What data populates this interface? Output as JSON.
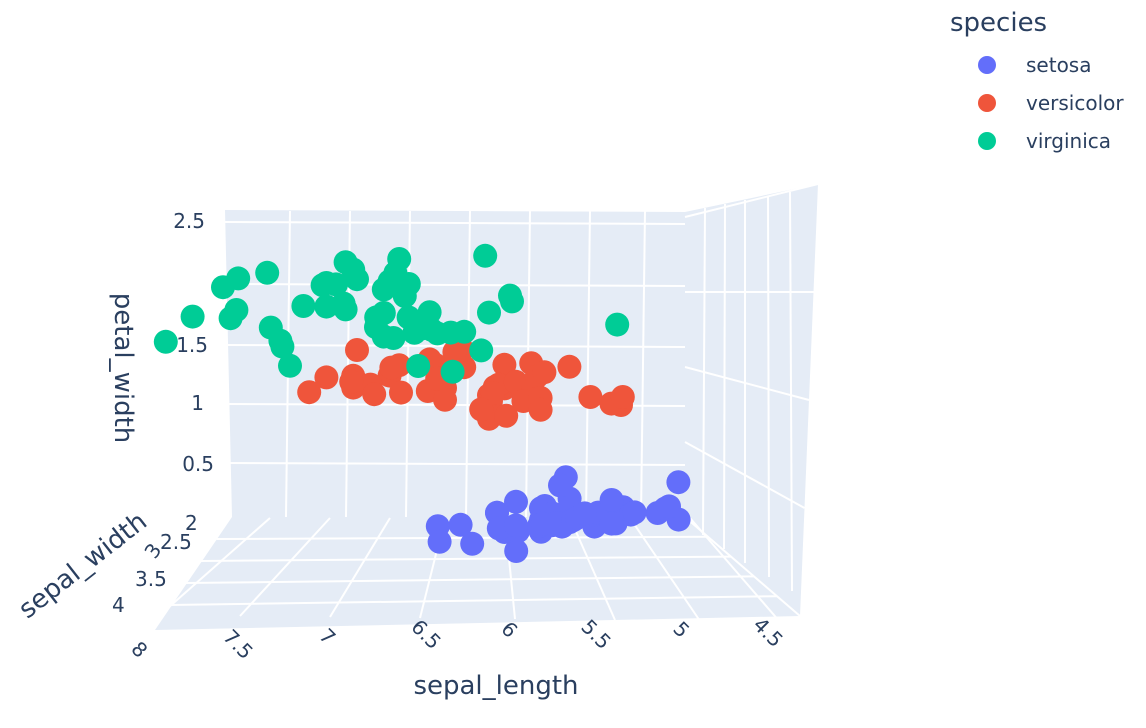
{
  "chart_data": {
    "type": "scatter",
    "projection": "3d",
    "legend_title": "species",
    "legend_position": "top-right",
    "axes": {
      "x": {
        "title": "sepal_length",
        "ticks": [
          "4.5",
          "5",
          "5.5",
          "6",
          "6.5",
          "7",
          "7.5",
          "8"
        ],
        "range": [
          4.3,
          8
        ]
      },
      "y": {
        "title": "sepal_width",
        "ticks": [
          "2",
          "2.5",
          "3",
          "3.5",
          "4"
        ],
        "range": [
          2,
          4.4
        ]
      },
      "z": {
        "title": "petal_width",
        "ticks": [
          "0.5",
          "1",
          "1.5",
          "2.5"
        ],
        "range": [
          0.1,
          2.5
        ]
      }
    },
    "grid": true,
    "series": [
      {
        "name": "setosa",
        "color": "#636efa",
        "points": [
          [
            5.1,
            3.5,
            0.2
          ],
          [
            4.9,
            3.0,
            0.2
          ],
          [
            4.7,
            3.2,
            0.2
          ],
          [
            4.6,
            3.1,
            0.2
          ],
          [
            5.0,
            3.6,
            0.2
          ],
          [
            5.4,
            3.9,
            0.4
          ],
          [
            4.6,
            3.4,
            0.3
          ],
          [
            5.0,
            3.4,
            0.2
          ],
          [
            4.4,
            2.9,
            0.2
          ],
          [
            4.9,
            3.1,
            0.1
          ],
          [
            5.4,
            3.7,
            0.2
          ],
          [
            4.8,
            3.4,
            0.2
          ],
          [
            4.8,
            3.0,
            0.1
          ],
          [
            4.3,
            3.0,
            0.1
          ],
          [
            5.8,
            4.0,
            0.2
          ],
          [
            5.7,
            4.4,
            0.4
          ],
          [
            5.4,
            3.9,
            0.4
          ],
          [
            5.1,
            3.5,
            0.3
          ],
          [
            5.7,
            3.8,
            0.3
          ],
          [
            5.1,
            3.8,
            0.3
          ],
          [
            5.4,
            3.4,
            0.2
          ],
          [
            5.1,
            3.7,
            0.4
          ],
          [
            4.6,
            3.6,
            0.2
          ],
          [
            5.1,
            3.3,
            0.5
          ],
          [
            4.8,
            3.4,
            0.2
          ],
          [
            5.0,
            3.0,
            0.2
          ],
          [
            5.0,
            3.4,
            0.4
          ],
          [
            5.2,
            3.5,
            0.2
          ],
          [
            5.2,
            3.4,
            0.2
          ],
          [
            4.7,
            3.2,
            0.2
          ],
          [
            4.8,
            3.1,
            0.2
          ],
          [
            5.4,
            3.4,
            0.4
          ],
          [
            5.2,
            4.1,
            0.1
          ],
          [
            5.5,
            4.2,
            0.2
          ],
          [
            4.9,
            3.1,
            0.2
          ],
          [
            5.0,
            3.2,
            0.2
          ],
          [
            5.5,
            3.5,
            0.2
          ],
          [
            4.4,
            3.0,
            0.2
          ],
          [
            5.1,
            3.4,
            0.2
          ],
          [
            5.0,
            3.5,
            0.3
          ],
          [
            4.5,
            2.3,
            0.3
          ],
          [
            4.4,
            3.2,
            0.2
          ],
          [
            5.0,
            3.5,
            0.6
          ],
          [
            5.1,
            3.8,
            0.4
          ],
          [
            4.8,
            3.0,
            0.3
          ],
          [
            5.1,
            3.8,
            0.2
          ],
          [
            4.6,
            3.2,
            0.2
          ],
          [
            5.3,
            3.7,
            0.2
          ],
          [
            5.0,
            3.3,
            0.2
          ]
        ]
      },
      {
        "name": "versicolor",
        "color": "#ef553b",
        "points": [
          [
            7.0,
            3.2,
            1.4
          ],
          [
            6.4,
            3.2,
            1.5
          ],
          [
            6.9,
            3.1,
            1.5
          ],
          [
            5.5,
            2.3,
            1.3
          ],
          [
            6.5,
            2.8,
            1.5
          ],
          [
            5.7,
            2.8,
            1.3
          ],
          [
            6.3,
            3.3,
            1.6
          ],
          [
            4.9,
            2.4,
            1.0
          ],
          [
            6.6,
            2.9,
            1.3
          ],
          [
            5.2,
            2.7,
            1.4
          ],
          [
            5.0,
            2.0,
            1.0
          ],
          [
            5.9,
            3.0,
            1.5
          ],
          [
            6.0,
            2.2,
            1.0
          ],
          [
            6.1,
            2.9,
            1.4
          ],
          [
            5.6,
            2.9,
            1.3
          ],
          [
            6.7,
            3.1,
            1.4
          ],
          [
            5.6,
            3.0,
            1.5
          ],
          [
            5.8,
            2.7,
            1.0
          ],
          [
            6.2,
            2.2,
            1.5
          ],
          [
            5.6,
            2.5,
            1.1
          ],
          [
            5.9,
            3.2,
            1.8
          ],
          [
            6.1,
            2.8,
            1.3
          ],
          [
            6.3,
            2.5,
            1.5
          ],
          [
            6.1,
            2.8,
            1.2
          ],
          [
            6.4,
            2.9,
            1.3
          ],
          [
            6.6,
            3.0,
            1.4
          ],
          [
            6.8,
            2.8,
            1.4
          ],
          [
            6.7,
            3.0,
            1.7
          ],
          [
            6.0,
            2.9,
            1.5
          ],
          [
            5.7,
            2.6,
            1.0
          ],
          [
            5.5,
            2.4,
            1.1
          ],
          [
            5.5,
            2.4,
            1.0
          ],
          [
            5.8,
            2.7,
            1.2
          ],
          [
            6.0,
            2.7,
            1.6
          ],
          [
            5.4,
            3.0,
            1.5
          ],
          [
            6.0,
            3.4,
            1.6
          ],
          [
            6.7,
            3.1,
            1.5
          ],
          [
            6.3,
            2.3,
            1.3
          ],
          [
            5.6,
            3.0,
            1.3
          ],
          [
            5.5,
            2.5,
            1.3
          ],
          [
            5.5,
            2.6,
            1.2
          ],
          [
            6.1,
            3.0,
            1.4
          ],
          [
            5.8,
            2.6,
            1.2
          ],
          [
            5.0,
            2.3,
            1.0
          ],
          [
            5.6,
            2.7,
            1.3
          ],
          [
            5.7,
            3.0,
            1.2
          ],
          [
            5.7,
            2.9,
            1.3
          ],
          [
            6.2,
            2.9,
            1.3
          ],
          [
            5.1,
            2.5,
            1.1
          ],
          [
            5.7,
            2.8,
            1.3
          ]
        ]
      },
      {
        "name": "virginica",
        "color": "#00cc96",
        "points": [
          [
            6.3,
            3.3,
            2.5
          ],
          [
            5.8,
            2.7,
            1.9
          ],
          [
            7.1,
            3.0,
            2.1
          ],
          [
            6.3,
            2.9,
            1.8
          ],
          [
            6.5,
            3.0,
            2.2
          ],
          [
            7.6,
            3.0,
            2.1
          ],
          [
            4.9,
            2.5,
            1.7
          ],
          [
            7.3,
            2.9,
            1.8
          ],
          [
            6.7,
            2.5,
            1.8
          ],
          [
            7.2,
            3.6,
            2.5
          ],
          [
            6.5,
            3.2,
            2.0
          ],
          [
            6.4,
            2.7,
            1.9
          ],
          [
            6.8,
            3.0,
            2.1
          ],
          [
            5.7,
            2.5,
            2.0
          ],
          [
            5.8,
            2.8,
            2.4
          ],
          [
            6.4,
            3.2,
            2.3
          ],
          [
            6.5,
            3.0,
            1.8
          ],
          [
            7.7,
            3.8,
            2.2
          ],
          [
            7.7,
            2.6,
            2.3
          ],
          [
            6.0,
            2.2,
            1.5
          ],
          [
            6.9,
            3.2,
            2.3
          ],
          [
            5.6,
            2.8,
            2.0
          ],
          [
            7.7,
            2.8,
            2.0
          ],
          [
            6.3,
            2.7,
            1.8
          ],
          [
            6.7,
            3.3,
            2.1
          ],
          [
            7.2,
            3.2,
            1.8
          ],
          [
            6.2,
            2.8,
            1.8
          ],
          [
            6.1,
            3.0,
            1.8
          ],
          [
            6.4,
            2.8,
            2.1
          ],
          [
            7.2,
            3.0,
            1.6
          ],
          [
            7.4,
            2.8,
            1.9
          ],
          [
            7.9,
            3.8,
            2.0
          ],
          [
            6.4,
            2.8,
            2.2
          ],
          [
            6.3,
            2.8,
            1.5
          ],
          [
            6.1,
            2.6,
            1.4
          ],
          [
            7.7,
            3.0,
            2.3
          ],
          [
            6.3,
            3.4,
            2.4
          ],
          [
            6.4,
            3.1,
            1.8
          ],
          [
            6.0,
            3.0,
            1.8
          ],
          [
            6.9,
            3.1,
            2.1
          ],
          [
            6.7,
            3.1,
            2.4
          ],
          [
            6.9,
            3.1,
            2.3
          ],
          [
            6.8,
            3.2,
            2.3
          ],
          [
            6.7,
            3.3,
            2.5
          ],
          [
            6.7,
            3.0,
            2.3
          ],
          [
            6.3,
            2.5,
            1.9
          ],
          [
            6.5,
            3.0,
            2.0
          ],
          [
            6.2,
            3.4,
            2.3
          ],
          [
            5.9,
            3.0,
            1.8
          ]
        ]
      }
    ]
  }
}
